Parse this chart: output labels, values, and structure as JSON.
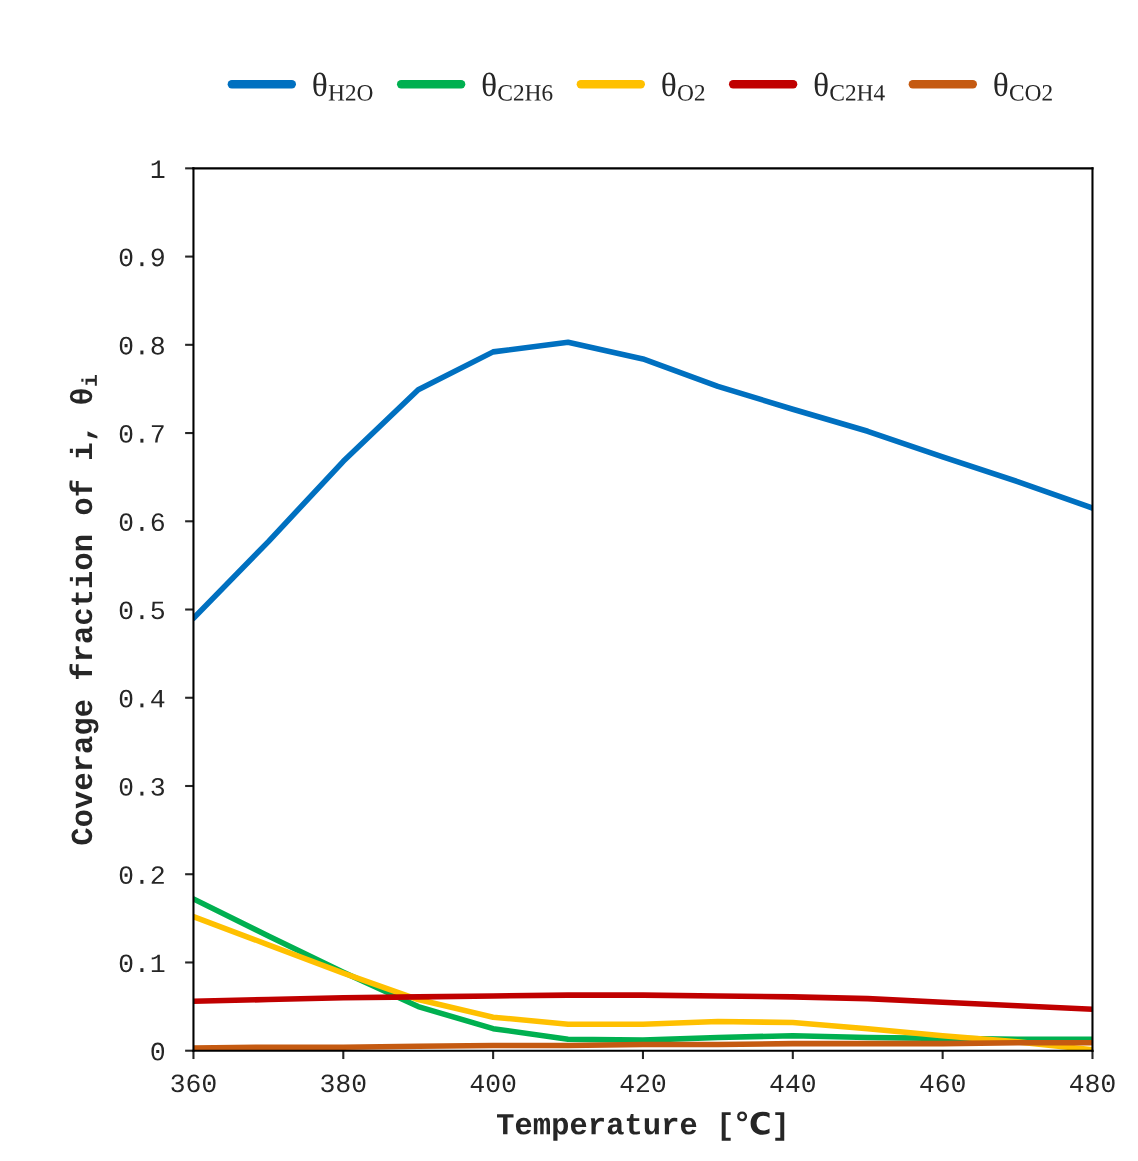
{
  "chart_data": {
    "type": "line",
    "xlabel": "Temperature [℃]",
    "ylabel": "Coverage fraction of i, θ$_{i}$",
    "xlim": [
      360,
      480
    ],
    "xticks": [
      360,
      380,
      400,
      420,
      440,
      460,
      480
    ],
    "ylim": [
      0,
      1
    ],
    "yticks": [
      0,
      {
        "value": 0.1,
        "label": "0.1"
      },
      {
        "value": 0.2,
        "label": "0.2"
      },
      {
        "value": 0.3,
        "label": "0.3"
      },
      {
        "value": 0.4,
        "label": "0.4"
      },
      {
        "value": 0.5,
        "label": "0.5"
      },
      {
        "value": 0.6,
        "label": "0.6"
      },
      {
        "value": 0.7,
        "label": "0.7"
      },
      {
        "value": 0.8,
        "label": "0.8"
      },
      {
        "value": 0.9,
        "label": "0.9"
      },
      1
    ],
    "x": [
      360,
      370,
      380,
      390,
      400,
      410,
      420,
      430,
      440,
      450,
      460,
      470,
      480
    ],
    "grid": false,
    "legend": "top",
    "marker": "none",
    "line_style": "solid",
    "series": [
      {
        "name": "θ$_{H2O}$",
        "color": "#0070c0",
        "values": [
          0.49,
          0.577,
          0.668,
          0.749,
          0.792,
          0.803,
          0.784,
          0.753,
          0.727,
          0.702,
          0.673,
          0.645,
          0.615
        ]
      },
      {
        "name": "θ$_{C2H6}$",
        "color": "#00b050",
        "values": [
          0.172,
          0.13,
          0.089,
          0.05,
          0.025,
          0.013,
          0.012,
          0.015,
          0.017,
          0.015,
          0.014,
          0.013,
          0.013
        ]
      },
      {
        "name": "θ$_{O2}$",
        "color": "#ffc000",
        "values": [
          0.152,
          0.12,
          0.088,
          0.058,
          0.038,
          0.03,
          0.03,
          0.033,
          0.032,
          0.025,
          0.017,
          0.01,
          0.001
        ]
      },
      {
        "name": "θ$_{C2H4}$",
        "color": "#c00000",
        "values": [
          0.056,
          0.058,
          0.06,
          0.061,
          0.062,
          0.063,
          0.063,
          0.062,
          0.061,
          0.059,
          0.055,
          0.051,
          0.047
        ]
      },
      {
        "name": "θ$_{CO2}$",
        "color": "#c55a11",
        "values": [
          0.003,
          0.004,
          0.004,
          0.005,
          0.006,
          0.006,
          0.007,
          0.007,
          0.008,
          0.008,
          0.008,
          0.009,
          0.009
        ]
      }
    ]
  }
}
